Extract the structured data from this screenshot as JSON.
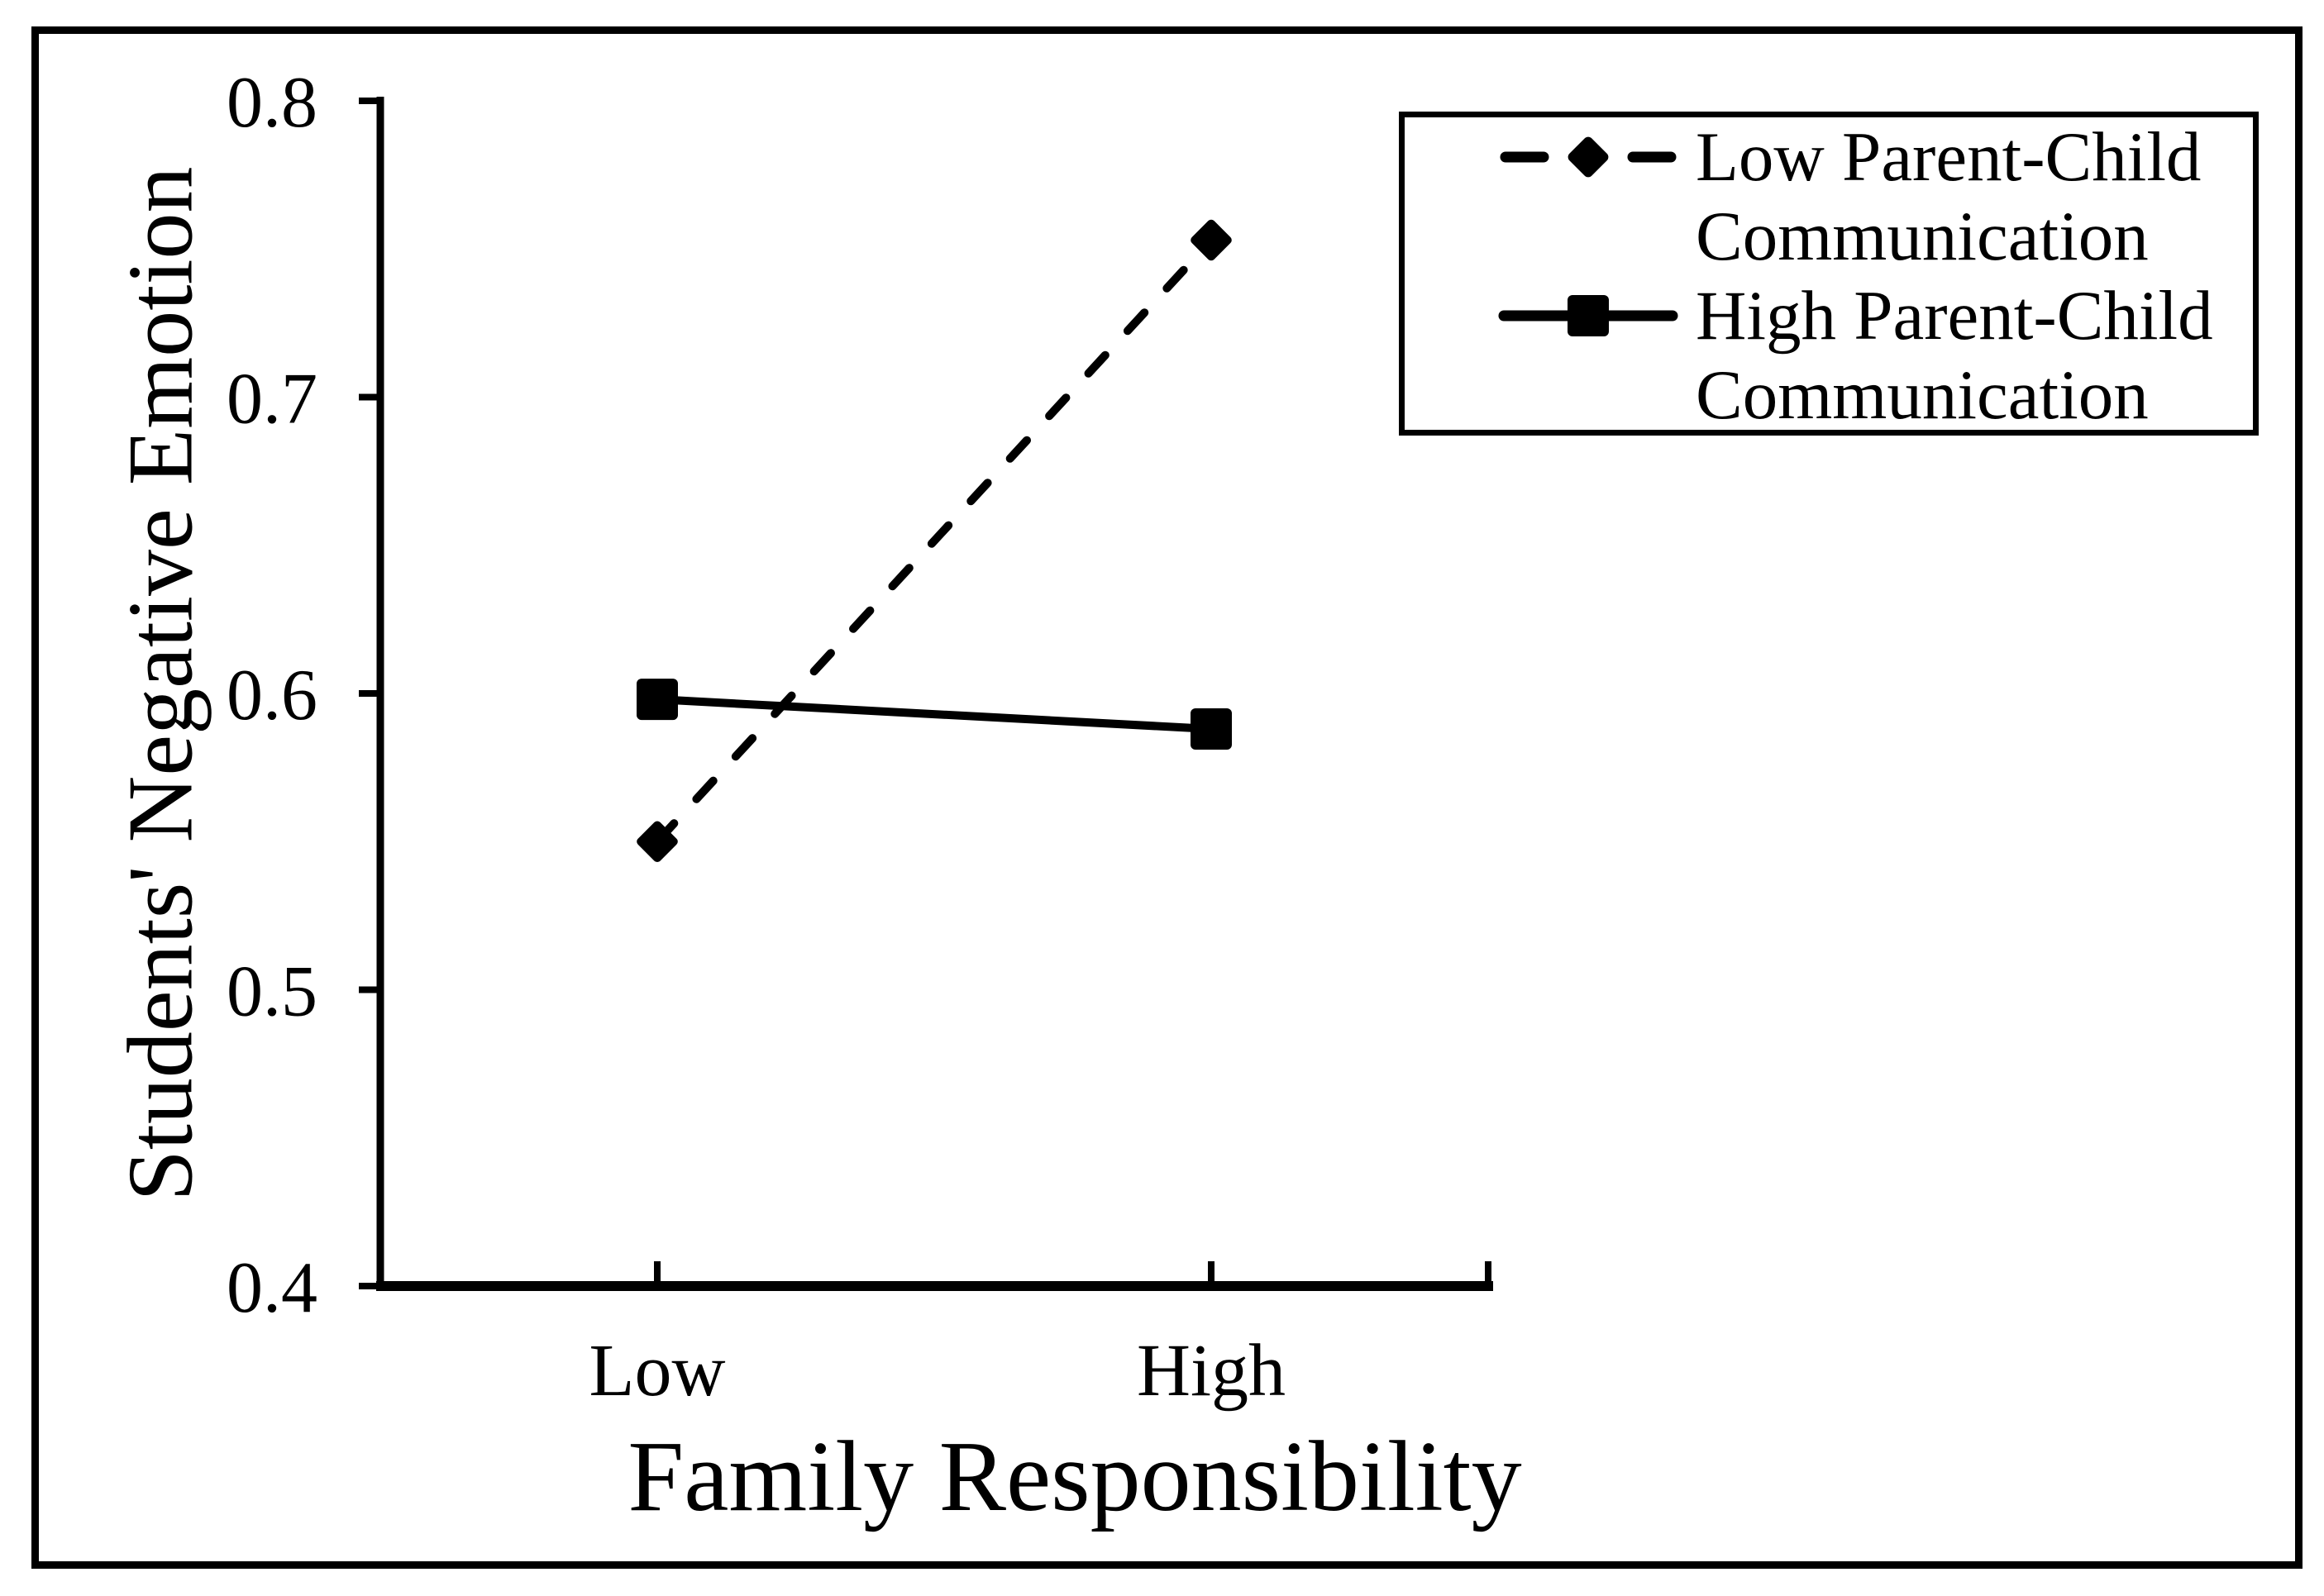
{
  "figure": {
    "background": "#ffffff",
    "frame_color": "#000000",
    "ink_color": "#000000"
  },
  "chart_data": {
    "type": "line",
    "title": "",
    "categories": [
      "Low",
      "High"
    ],
    "series": [
      {
        "name": "Low Parent-Child Communication",
        "style": "dashed",
        "marker": "diamond",
        "values": [
          0.55,
          0.753
        ]
      },
      {
        "name": "High Parent-Child Communication",
        "style": "solid",
        "marker": "square",
        "values": [
          0.598,
          0.588
        ]
      }
    ],
    "xlabel": "Family Responsibility",
    "ylabel": "Students' Negative Emotion",
    "ylim": [
      0.4,
      0.8
    ],
    "yticks": [
      0.8,
      0.7,
      0.6,
      0.5,
      0.4
    ],
    "ytick_format_decimals": 1,
    "grid": false,
    "legend_position": "top-right",
    "series_color": "#000000"
  },
  "legend": {
    "entries": [
      {
        "label": "Low Parent-Child\nCommunication",
        "marker": "dashed-line-with-diamond"
      },
      {
        "label": "High Parent-Child\nCommunication",
        "marker": "solid-line-with-square"
      }
    ]
  }
}
